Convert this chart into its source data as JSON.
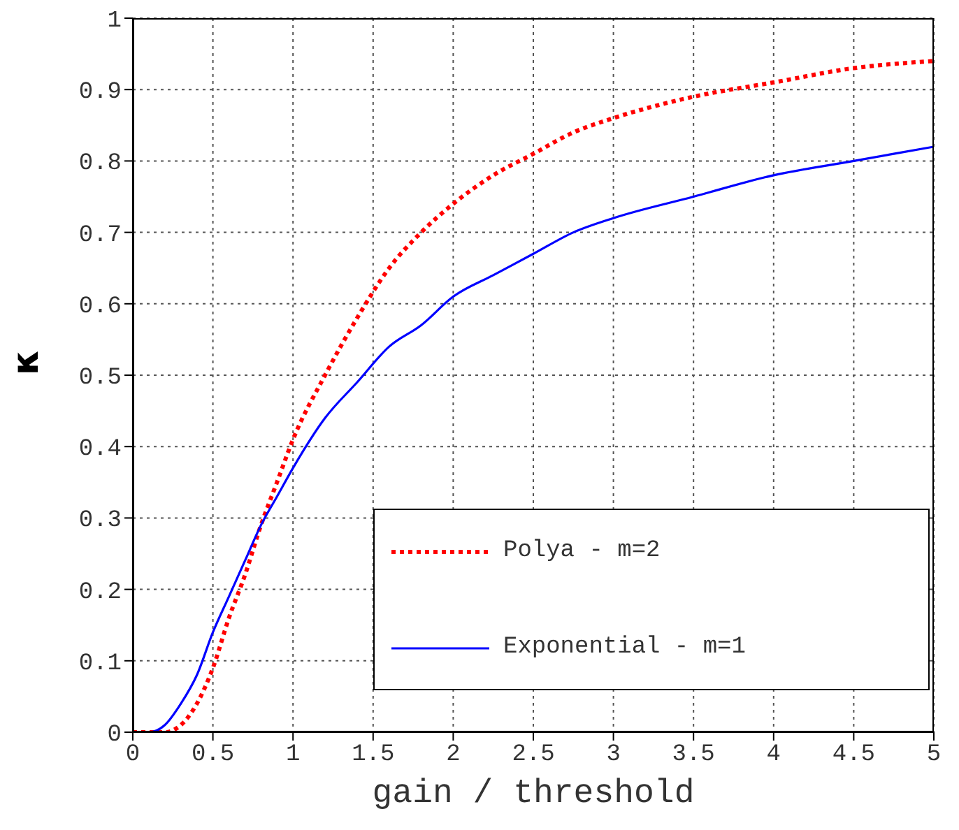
{
  "chart_data": {
    "type": "line",
    "xlabel": "gain / threshold",
    "ylabel": "κ",
    "x": [
      0,
      0.1,
      0.2,
      0.3,
      0.4,
      0.5,
      0.6,
      0.7,
      0.8,
      0.9,
      1,
      1.2,
      1.4,
      1.6,
      1.8,
      2,
      2.25,
      2.5,
      2.75,
      3,
      3.5,
      4,
      4.5,
      5
    ],
    "series": [
      {
        "name": "Polya - m=2",
        "color": "#ff0000",
        "line_style": "dotted",
        "values": [
          0,
          0,
          0,
          0.01,
          0.04,
          0.09,
          0.16,
          0.22,
          0.29,
          0.35,
          0.41,
          0.5,
          0.58,
          0.65,
          0.7,
          0.74,
          0.78,
          0.81,
          0.84,
          0.86,
          0.89,
          0.91,
          0.93,
          0.94
        ]
      },
      {
        "name": "Exponential - m=1",
        "color": "#0000ff",
        "line_style": "solid",
        "values": [
          0,
          0,
          0.01,
          0.04,
          0.08,
          0.14,
          0.19,
          0.24,
          0.29,
          0.33,
          0.37,
          0.44,
          0.49,
          0.54,
          0.57,
          0.61,
          0.64,
          0.67,
          0.7,
          0.72,
          0.75,
          0.78,
          0.8,
          0.82
        ]
      }
    ],
    "xlim": [
      0,
      5
    ],
    "xticks": [
      0,
      0.5,
      1,
      1.5,
      2,
      2.5,
      3,
      3.5,
      4,
      4.5,
      5
    ],
    "ylim": [
      0,
      1
    ],
    "yticks": [
      0,
      0.1,
      0.2,
      0.3,
      0.4,
      0.5,
      0.6,
      0.7,
      0.8,
      0.9,
      1
    ],
    "grid": true,
    "legend": "bottom right",
    "marker": "none"
  }
}
